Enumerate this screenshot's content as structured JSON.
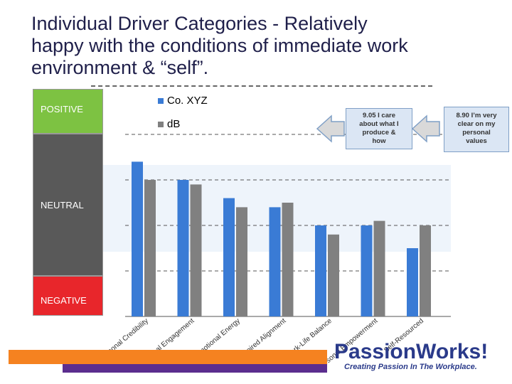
{
  "title_lines": [
    "Individual Driver Categories - Relatively",
    "happy with the conditions of immediate work",
    "environment & “self”."
  ],
  "bands": {
    "positive": "POSITIVE",
    "neutral": "NEUTRAL",
    "negative": "NEGATIVE"
  },
  "callouts": {
    "left_lines": [
      "9.05 I care",
      "about what I",
      "produce &",
      "how"
    ],
    "right_lines": [
      "8.90 I’m very",
      "clear on my",
      "personal",
      "values"
    ]
  },
  "brand": {
    "name": "PassionWorks!",
    "tagline": "Creating Passion In The Workplace."
  },
  "colors": {
    "series_1": "#3a7bd5",
    "series_2": "#808080",
    "positive_band": "#7dc242",
    "neutral_band": "#595959",
    "negative_band": "#e8262b",
    "highlight_band": "#eef4fb",
    "callout_fill": "#dbe6f4",
    "arrow_fill": "#d9d9d9",
    "brand_bar": "#f58220",
    "brand_text": "#2a3a8a"
  },
  "chart_data": {
    "type": "bar",
    "categories": [
      "Personal Credibility",
      "Personal Engagement",
      "Emotional Energy",
      "Inspired Alignment",
      "Work-Life Balance",
      "Personal Empowerment",
      "Self-Resourced"
    ],
    "series": [
      {
        "name": "Co. XYZ",
        "values": [
          3.4,
          3.0,
          2.6,
          2.4,
          2.0,
          2.0,
          1.5
        ]
      },
      {
        "name": "dΒ",
        "values": [
          3.0,
          2.9,
          2.4,
          2.5,
          1.8,
          2.1,
          2.0
        ]
      }
    ],
    "ylim": [
      0,
      4
    ],
    "grid": true,
    "legend_position": "top"
  }
}
